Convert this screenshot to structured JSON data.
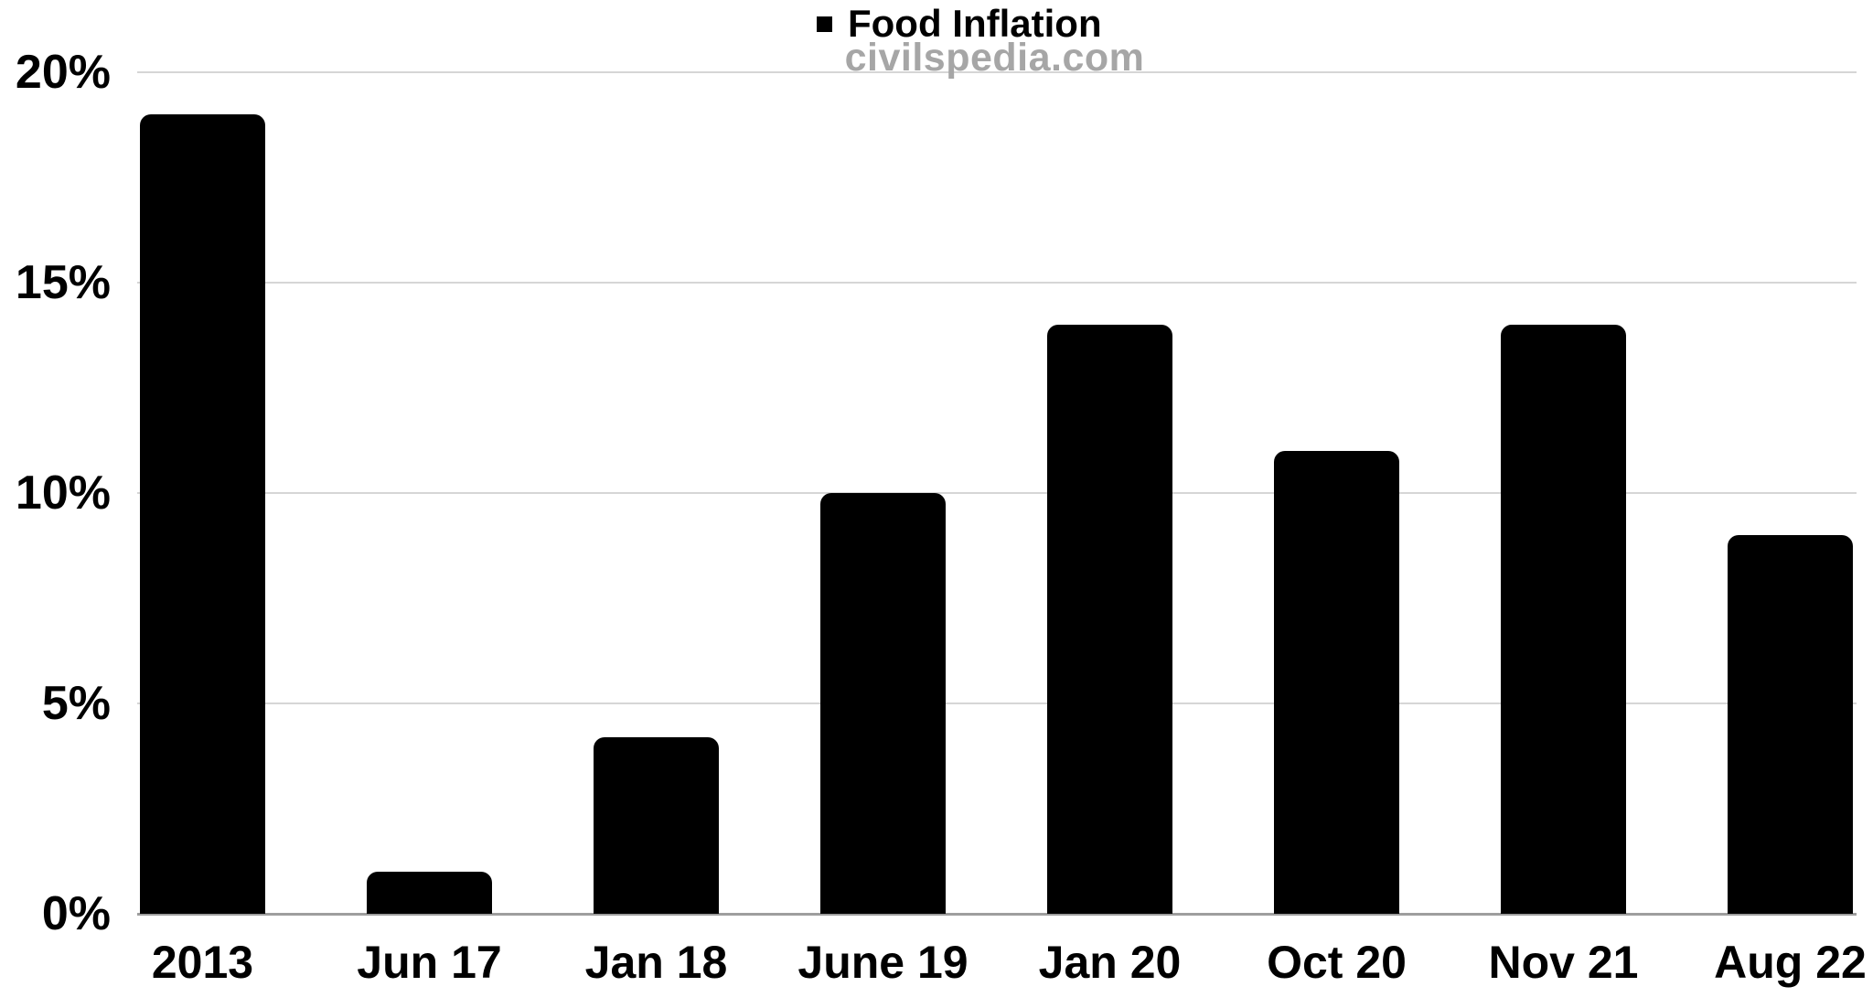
{
  "chart_data": {
    "type": "bar",
    "title": "Food Inflation",
    "legend": {
      "label": "Food Inflation",
      "position": "top-center",
      "marker": "black-square"
    },
    "watermark": "civilspedia.com",
    "categories": [
      "2013",
      "Jun 17",
      "Jan 18",
      "June 19",
      "Jan 20",
      "Oct 20",
      "Nov 21",
      "Aug 22"
    ],
    "values": [
      19,
      1,
      4.2,
      10,
      14,
      11,
      14,
      9
    ],
    "series": [
      {
        "name": "Food Inflation",
        "values": [
          19,
          1,
          4.2,
          10,
          14,
          11,
          14,
          9
        ]
      }
    ],
    "xlabel": "",
    "ylabel": "",
    "ylim": [
      0,
      20
    ],
    "yticks": [
      0,
      5,
      10,
      15,
      20
    ],
    "ytick_labels": [
      "0%",
      "5%",
      "10%",
      "15%",
      "20%"
    ],
    "grid": true,
    "colors": {
      "bar": "#000000",
      "gridline": "#d6d6d6",
      "axis_line": "#9e9e9e",
      "watermark": "#a6a6a6",
      "text": "#000000",
      "background": "#ffffff"
    }
  }
}
